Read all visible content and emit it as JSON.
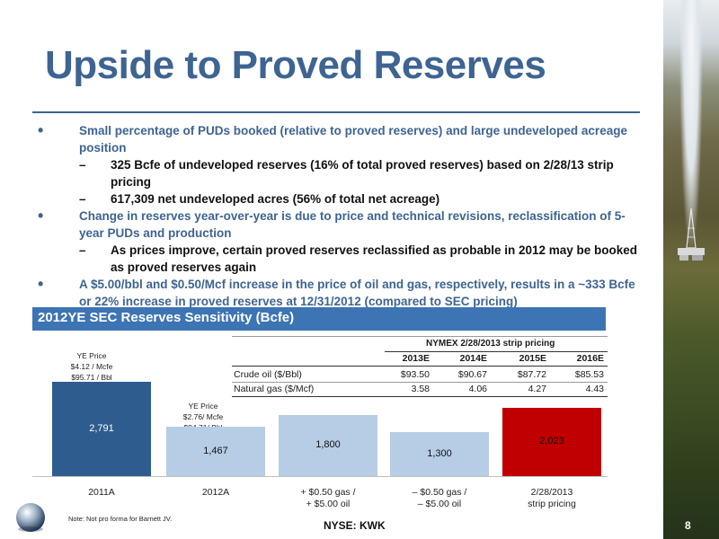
{
  "slide": {
    "title": "Upside to Proved Reserves",
    "page_number": "8",
    "ticker": "NYSE:  KWK",
    "note": "Note:  Not pro forma for Barnett JV."
  },
  "bullets": [
    {
      "text": "Small percentage of PUDs booked (relative to proved reserves) and large undeveloped acreage position",
      "subs": [
        "325 Bcfe of undeveloped reserves (16% of total proved reserves) based on 2/28/13 strip pricing",
        "617,309 net undeveloped acres (56% of total net acreage)"
      ]
    },
    {
      "text": "Change in reserves year-over-year is due to price and technical revisions, reclassification of 5-year PUDs and production",
      "subs": [
        "As prices improve, certain proved reserves reclassified as probable in 2012 may be booked as proved reserves again"
      ]
    },
    {
      "text": "A $5.00/bbl and $0.50/Mcf increase in the price of oil and gas, respectively, results in a ~333 Bcfe or 22% increase in proved reserves at 12/31/2012 (compared to SEC pricing)",
      "subs": []
    }
  ],
  "sensitivity": {
    "header": "2012YE SEC Reserves Sensitivity (Bcfe)"
  },
  "price_notes": [
    {
      "line1": "YE Price",
      "line2": "$4.12 / Mcfe",
      "line3": "$95.71 / Bbl"
    },
    {
      "line1": "YE Price",
      "line2": "$2.76/ Mcfe",
      "line3": "$94.71/ Bbl"
    }
  ],
  "strip_table": {
    "header": "NYMEX 2/28/2013 strip pricing",
    "years": [
      "2013E",
      "2014E",
      "2015E",
      "2016E"
    ],
    "rows": [
      {
        "label": "Crude oil ($/Bbl)",
        "values": [
          "$93.50",
          "$90.67",
          "$87.72",
          "$85.53"
        ]
      },
      {
        "label": "Natural gas ($/Mcf)",
        "values": [
          "3.58",
          "4.06",
          "4.27",
          "4.43"
        ]
      }
    ]
  },
  "chart_data": {
    "type": "bar",
    "categories": [
      "2011A",
      "2012A",
      "+ $0.50 gas / + $5.00 oil",
      "– $0.50 gas / – $5.00 oil",
      "2/28/2013 strip pricing"
    ],
    "category_lines": [
      [
        "2011A",
        ""
      ],
      [
        "2012A",
        ""
      ],
      [
        "+ $0.50 gas /",
        "+ $5.00 oil"
      ],
      [
        "– $0.50 gas /",
        "– $5.00 oil"
      ],
      [
        "2/28/2013",
        "strip pricing"
      ]
    ],
    "values": [
      2791,
      1467,
      1800,
      1300,
      2023
    ],
    "value_labels": [
      "2,791",
      "1,467",
      "1,800",
      "1,300",
      "2,023"
    ],
    "colors": [
      "#2f5c8f",
      "#b7cde6",
      "#b7cde6",
      "#b7cde6",
      "#c00000"
    ],
    "ylim": [
      0,
      2791
    ]
  },
  "colors": {
    "title": "#3e6491",
    "bullet_blue": "#3e6491",
    "header_bar": "#3d74b4",
    "bar_dark": "#2f5c8f",
    "bar_light": "#b7cde6",
    "bar_red": "#c00000"
  },
  "icons": {
    "logo": "globe-logo-icon",
    "side": "drilling-rig-landscape"
  }
}
